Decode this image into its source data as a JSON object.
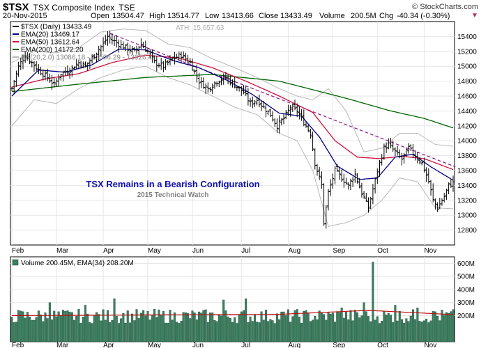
{
  "header": {
    "symbol": "$TSX",
    "name": "TSX Composite Index",
    "exchange": "TSE",
    "brand": "© StockCharts.com",
    "date": "20-Nov-2015",
    "open_label": "Open",
    "open": "13504.47",
    "high_label": "High",
    "high": "13514.77",
    "low_label": "Low",
    "low": "13413.66",
    "close_label": "Close",
    "close": "13433.49",
    "volume_label": "Volume",
    "volume": "200.5M",
    "chg_label": "Chg",
    "chg": "-40.34 (-0.30%)"
  },
  "colors": {
    "ema20": "#000080",
    "ema50": "#d0103a",
    "ema200": "#006400",
    "bb": "#b8b8b8",
    "trendline": "#8b1a8b",
    "price": "#000000",
    "volume_bar": "#3a8060",
    "volume_ema": "#c01010",
    "annotation": "#1010b0"
  },
  "chart_data": [
    {
      "type": "ohlc",
      "legend": [
        {
          "name": "$TSX (Daily)",
          "value": "13433.49"
        },
        {
          "name": "EMA(20)",
          "value": "13469.17"
        },
        {
          "name": "EMA(50)",
          "value": "13612.64"
        },
        {
          "name": "EMA(200)",
          "value": "14172.20"
        },
        {
          "name": "BB(20,2.0)",
          "value": "13086.18 - 13506.29 - 13926.41"
        }
      ],
      "ath_label": "ATH: 15,657.63",
      "annotation": "TSX Remains in a Bearish Configuration",
      "annotation_sub": "2015 Technical Watch",
      "ylim": [
        12600,
        15600
      ],
      "yticks": [
        12800,
        13000,
        13200,
        13400,
        13600,
        13800,
        14000,
        14200,
        14400,
        14600,
        14800,
        15000,
        15200,
        15400
      ],
      "months": [
        {
          "label": "Feb",
          "day": 0
        },
        {
          "label": "Mar",
          "day": 20
        },
        {
          "label": "Apr",
          "day": 41
        },
        {
          "label": "May",
          "day": 61
        },
        {
          "label": "Jun",
          "day": 81
        },
        {
          "label": "Jul",
          "day": 103
        },
        {
          "label": "Aug",
          "day": 124
        },
        {
          "label": "Sep",
          "day": 144
        },
        {
          "label": "Oct",
          "day": 164
        },
        {
          "label": "Nov",
          "day": 185
        }
      ],
      "n_days": 199,
      "close_anchors": [
        [
          0,
          14700
        ],
        [
          3,
          15000
        ],
        [
          6,
          15150
        ],
        [
          9,
          15050
        ],
        [
          12,
          14950
        ],
        [
          16,
          14850
        ],
        [
          19,
          14750
        ],
        [
          22,
          14900
        ],
        [
          26,
          14950
        ],
        [
          30,
          15050
        ],
        [
          33,
          15000
        ],
        [
          37,
          15150
        ],
        [
          41,
          15300
        ],
        [
          43,
          15400
        ],
        [
          45,
          15350
        ],
        [
          48,
          15300
        ],
        [
          51,
          15250
        ],
        [
          55,
          15200
        ],
        [
          58,
          15300
        ],
        [
          61,
          15200
        ],
        [
          64,
          15050
        ],
        [
          68,
          15000
        ],
        [
          72,
          15100
        ],
        [
          76,
          15150
        ],
        [
          80,
          15050
        ],
        [
          84,
          14800
        ],
        [
          88,
          14700
        ],
        [
          92,
          14800
        ],
        [
          96,
          14850
        ],
        [
          100,
          14750
        ],
        [
          104,
          14650
        ],
        [
          107,
          14500
        ],
        [
          110,
          14550
        ],
        [
          113,
          14450
        ],
        [
          116,
          14350
        ],
        [
          119,
          14200
        ],
        [
          122,
          14300
        ],
        [
          125,
          14450
        ],
        [
          128,
          14400
        ],
        [
          131,
          14250
        ],
        [
          134,
          14100
        ],
        [
          136,
          13700
        ],
        [
          139,
          13400
        ],
        [
          140,
          12900
        ],
        [
          142,
          13300
        ],
        [
          145,
          13600
        ],
        [
          148,
          13500
        ],
        [
          151,
          13400
        ],
        [
          154,
          13550
        ],
        [
          157,
          13300
        ],
        [
          160,
          13100
        ],
        [
          162,
          13350
        ],
        [
          165,
          13700
        ],
        [
          167,
          13900
        ],
        [
          169,
          13950
        ],
        [
          172,
          13850
        ],
        [
          175,
          13750
        ],
        [
          178,
          13900
        ],
        [
          181,
          13800
        ],
        [
          184,
          13700
        ],
        [
          187,
          13450
        ],
        [
          189,
          13200
        ],
        [
          191,
          13100
        ],
        [
          194,
          13250
        ],
        [
          196,
          13400
        ],
        [
          198,
          13433
        ]
      ],
      "ema20_anchors": [
        [
          0,
          14600
        ],
        [
          12,
          14950
        ],
        [
          24,
          14920
        ],
        [
          36,
          15020
        ],
        [
          48,
          15230
        ],
        [
          60,
          15220
        ],
        [
          72,
          15080
        ],
        [
          84,
          14980
        ],
        [
          96,
          14820
        ],
        [
          108,
          14620
        ],
        [
          120,
          14370
        ],
        [
          130,
          14330
        ],
        [
          138,
          14050
        ],
        [
          146,
          13660
        ],
        [
          156,
          13480
        ],
        [
          164,
          13500
        ],
        [
          172,
          13780
        ],
        [
          180,
          13820
        ],
        [
          188,
          13650
        ],
        [
          198,
          13469
        ]
      ],
      "ema50_anchors": [
        [
          0,
          14720
        ],
        [
          15,
          14830
        ],
        [
          30,
          14900
        ],
        [
          45,
          15050
        ],
        [
          60,
          15150
        ],
        [
          75,
          15110
        ],
        [
          90,
          14980
        ],
        [
          105,
          14800
        ],
        [
          120,
          14600
        ],
        [
          135,
          14380
        ],
        [
          145,
          14000
        ],
        [
          155,
          13780
        ],
        [
          165,
          13760
        ],
        [
          175,
          13790
        ],
        [
          185,
          13760
        ],
        [
          198,
          13613
        ]
      ],
      "ema200_anchors": [
        [
          0,
          14660
        ],
        [
          30,
          14760
        ],
        [
          60,
          14850
        ],
        [
          90,
          14890
        ],
        [
          120,
          14800
        ],
        [
          150,
          14570
        ],
        [
          170,
          14400
        ],
        [
          185,
          14300
        ],
        [
          198,
          14172
        ]
      ],
      "bb_upper_anchors": [
        [
          0,
          15050
        ],
        [
          10,
          15200
        ],
        [
          20,
          15180
        ],
        [
          30,
          15250
        ],
        [
          40,
          15460
        ],
        [
          50,
          15500
        ],
        [
          60,
          15480
        ],
        [
          70,
          15300
        ],
        [
          80,
          15250
        ],
        [
          90,
          15100
        ],
        [
          100,
          14980
        ],
        [
          110,
          14850
        ],
        [
          120,
          14700
        ],
        [
          128,
          14600
        ],
        [
          135,
          14550
        ],
        [
          142,
          14700
        ],
        [
          150,
          14400
        ],
        [
          158,
          13850
        ],
        [
          166,
          13900
        ],
        [
          174,
          14100
        ],
        [
          182,
          14100
        ],
        [
          190,
          13950
        ],
        [
          198,
          13926
        ]
      ],
      "bb_lower_anchors": [
        [
          0,
          14200
        ],
        [
          10,
          14550
        ],
        [
          20,
          14500
        ],
        [
          30,
          14700
        ],
        [
          40,
          14850
        ],
        [
          50,
          14950
        ],
        [
          60,
          15000
        ],
        [
          70,
          14850
        ],
        [
          80,
          14750
        ],
        [
          90,
          14600
        ],
        [
          100,
          14450
        ],
        [
          110,
          14350
        ],
        [
          120,
          14100
        ],
        [
          128,
          14000
        ],
        [
          135,
          13600
        ],
        [
          142,
          12850
        ],
        [
          150,
          12900
        ],
        [
          158,
          13000
        ],
        [
          166,
          13200
        ],
        [
          174,
          13500
        ],
        [
          182,
          13450
        ],
        [
          190,
          13100
        ],
        [
          198,
          13086
        ]
      ],
      "trendline": [
        [
          44,
          15440
        ],
        [
          199,
          13650
        ]
      ]
    },
    {
      "type": "bar",
      "legend": [
        {
          "name": "Volume",
          "value": "200.45M"
        },
        {
          "name": "EMA(34)",
          "value": "208.20M"
        }
      ],
      "ylim": [
        0,
        650
      ],
      "yticks": [
        200,
        300,
        400,
        500,
        600
      ],
      "ytick_labels": [
        "200M",
        "300M",
        "400M",
        "500M",
        "600M"
      ],
      "spikes": [
        [
          17,
          300
        ],
        [
          33,
          280
        ],
        [
          46,
          330
        ],
        [
          95,
          320
        ],
        [
          105,
          330
        ],
        [
          148,
          260
        ],
        [
          158,
          300
        ],
        [
          162,
          610
        ],
        [
          172,
          280
        ],
        [
          182,
          260
        ],
        [
          190,
          230
        ]
      ],
      "vol_ema": [
        [
          0,
          200
        ],
        [
          60,
          205
        ],
        [
          120,
          210
        ],
        [
          160,
          240
        ],
        [
          198,
          208
        ]
      ]
    }
  ]
}
